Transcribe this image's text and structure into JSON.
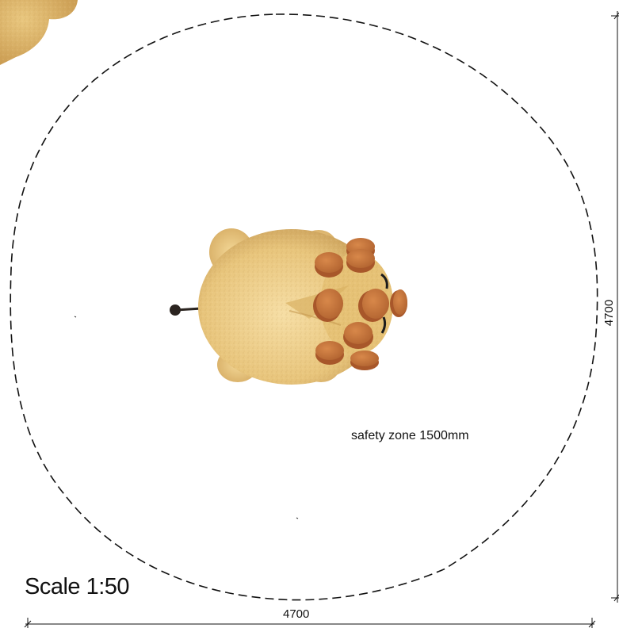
{
  "drawing": {
    "safety_zone_label": "safety zone 1500mm",
    "scale_label": "Scale 1:50",
    "dim_width_label": "4700",
    "dim_height_label": "4700"
  },
  "colors": {
    "body_light": "#f2d79a",
    "body_mid": "#e3bd6f",
    "body_dark": "#c9954a",
    "peg_top": "#d27f3e",
    "peg_side": "#a8572a",
    "line": "#111111"
  }
}
